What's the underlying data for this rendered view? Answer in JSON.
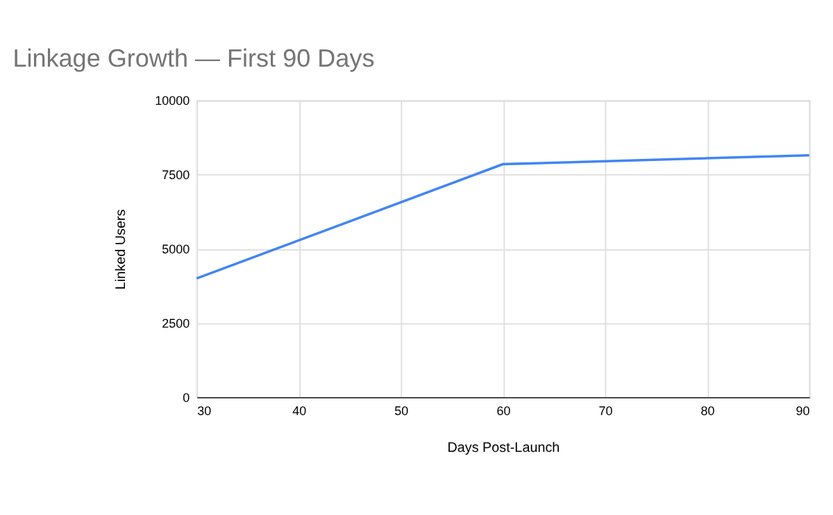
{
  "chart_data": {
    "type": "line",
    "title": "Linkage Growth — First 90 Days",
    "xlabel": "Days Post-Launch",
    "ylabel": "Linked Users",
    "x": [
      30,
      60,
      90
    ],
    "series": [
      {
        "color": "#4285f4",
        "values": [
          4000,
          7850,
          8150
        ]
      }
    ],
    "xlim": [
      30,
      90
    ],
    "xticks": [
      30,
      40,
      50,
      60,
      70,
      80,
      90
    ],
    "ylim": [
      0,
      10000
    ],
    "yticks": [
      0,
      2500,
      5000,
      7500,
      10000
    ],
    "grid": true,
    "marker": "none",
    "line_style": "solid"
  }
}
